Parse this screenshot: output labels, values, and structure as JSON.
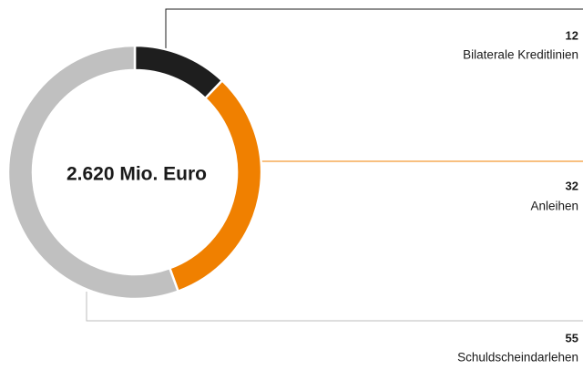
{
  "chart_data": {
    "type": "donut",
    "center_label": "2.620 Mio. Euro",
    "categories": [
      "Bilaterale Kreditlinien",
      "Anleihen",
      "Schuldscheindarlehen"
    ],
    "values": [
      12,
      32,
      55
    ],
    "colors": [
      "#1e1e1e",
      "#f08000",
      "#c0c0c0"
    ]
  }
}
